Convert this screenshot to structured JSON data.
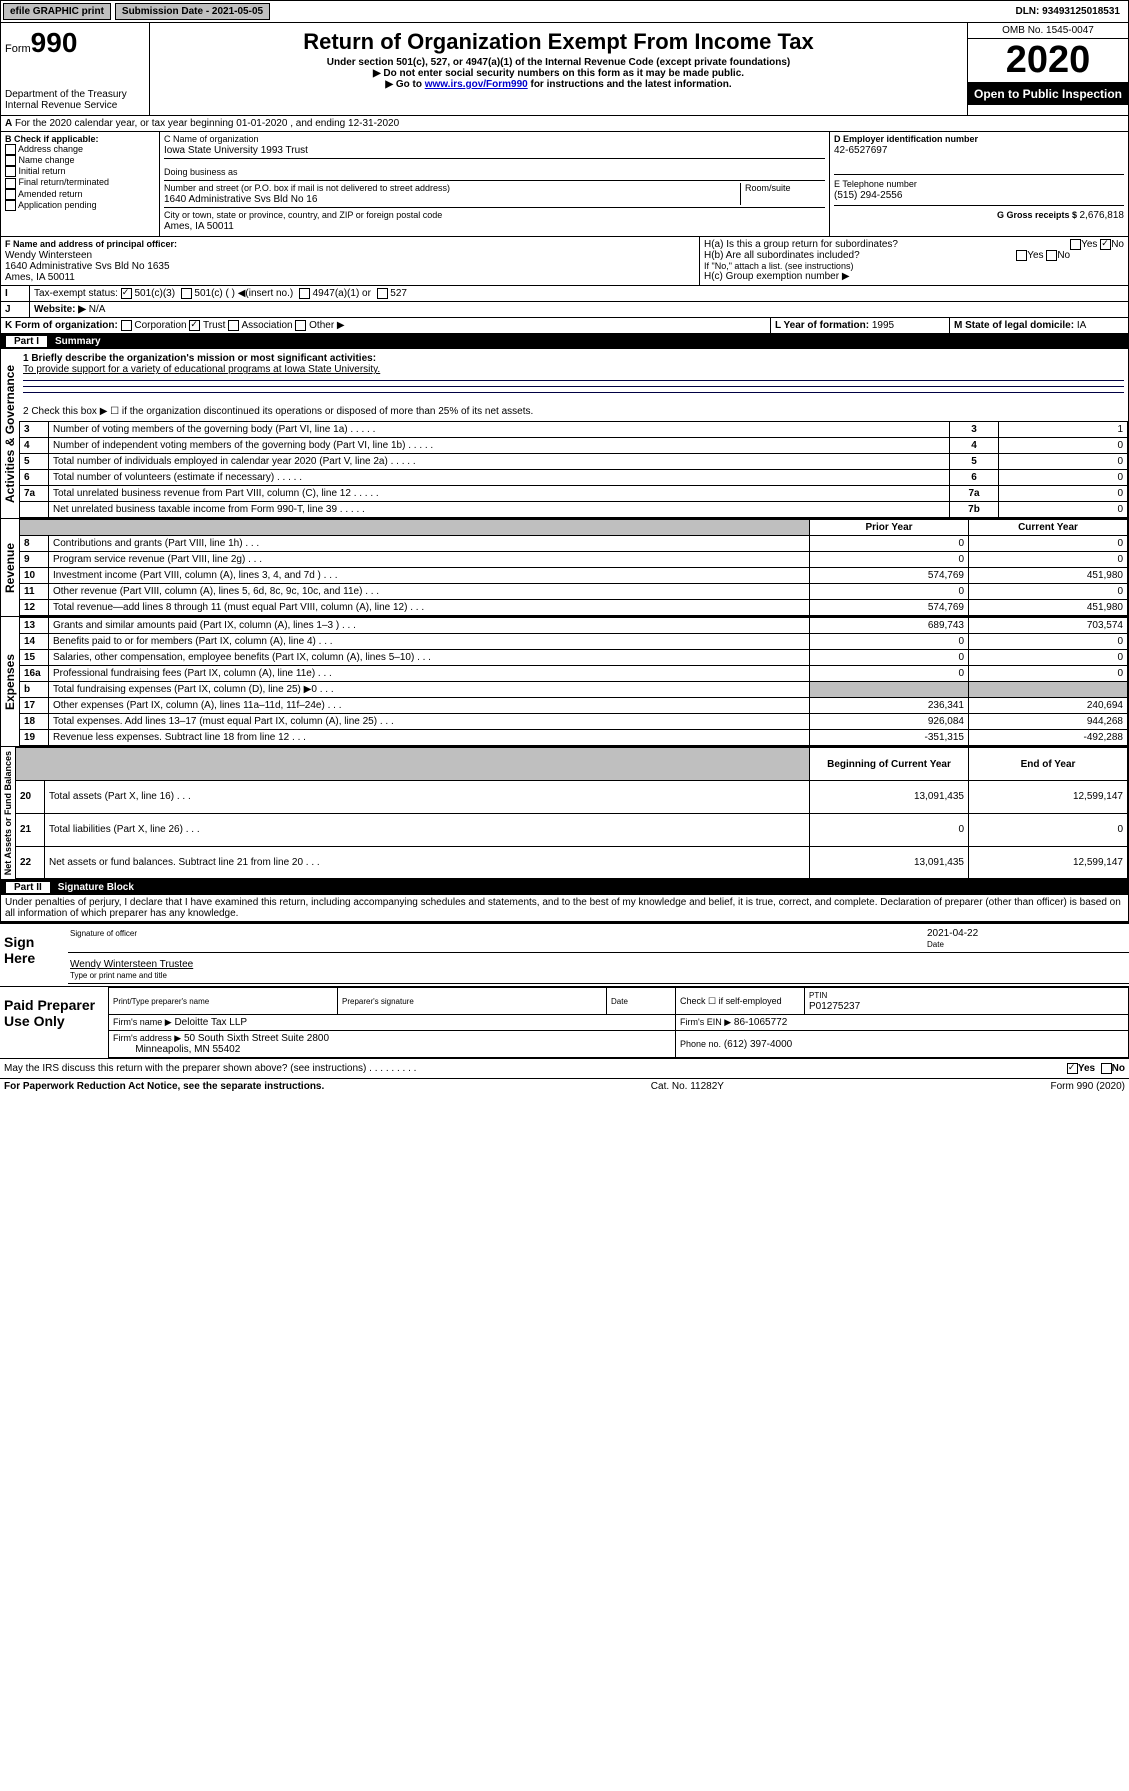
{
  "topbar": {
    "efile": "efile GRAPHIC print",
    "subdate_label": "Submission Date - 2021-05-05",
    "dln": "DLN: 93493125018531"
  },
  "header": {
    "form_label": "Form",
    "form_no": "990",
    "dept": "Department of the Treasury\nInternal Revenue Service",
    "title": "Return of Organization Exempt From Income Tax",
    "subtitle": "Under section 501(c), 527, or 4947(a)(1) of the Internal Revenue Code (except private foundations)",
    "note1": "▶ Do not enter social security numbers on this form as it may be made public.",
    "note2_pre": "▶ Go to ",
    "note2_link": "www.irs.gov/Form990",
    "note2_post": " for instructions and the latest information.",
    "omb": "OMB No. 1545-0047",
    "year": "2020",
    "open": "Open to Public Inspection"
  },
  "line_a": "For the 2020 calendar year, or tax year beginning 01-01-2020    , and ending 12-31-2020",
  "section_b": {
    "label": "B Check if applicable:",
    "items": [
      "Address change",
      "Name change",
      "Initial return",
      "Final return/terminated",
      "Amended return",
      "Application pending"
    ]
  },
  "section_c": {
    "name_label": "C Name of organization",
    "name": "Iowa State University 1993 Trust",
    "dba_label": "Doing business as",
    "addr_label": "Number and street (or P.O. box if mail is not delivered to street address)",
    "addr": "1640 Administrative Svs Bld No 16",
    "room_label": "Room/suite",
    "city_label": "City or town, state or province, country, and ZIP or foreign postal code",
    "city": "Ames, IA  50011"
  },
  "section_d": {
    "ein_label": "D Employer identification number",
    "ein": "42-6527697",
    "phone_label": "E Telephone number",
    "phone": "(515) 294-2556",
    "gross_label": "G Gross receipts $ ",
    "gross": "2,676,818"
  },
  "section_f": {
    "label": "F Name and address of principal officer:",
    "name": "Wendy Wintersteen",
    "addr1": "1640 Administrative Svs Bld No 1635",
    "addr2": "Ames, IA  50011"
  },
  "section_h": {
    "a": "H(a)  Is this a group return for subordinates?",
    "b": "H(b)  Are all subordinates included?",
    "b_note": "If \"No,\" attach a list. (see instructions)",
    "c": "H(c)  Group exemption number ▶"
  },
  "status": {
    "label": "Tax-exempt status:",
    "opt1": "501(c)(3)",
    "opt2": "501(c) (   ) ◀(insert no.)",
    "opt3": "4947(a)(1) or",
    "opt4": "527"
  },
  "website": {
    "label": "Website: ▶",
    "val": "N/A"
  },
  "line_k": "K Form of organization:",
  "k_opts": [
    "Corporation",
    "Trust",
    "Association",
    "Other ▶"
  ],
  "line_l": {
    "label": "L Year of formation: ",
    "val": "1995"
  },
  "line_m": {
    "label": "M State of legal domicile: ",
    "val": "IA"
  },
  "part1": {
    "title": "Part I",
    "name": "Summary",
    "q1": "1  Briefly describe the organization's mission or most significant activities:",
    "q1_ans": "To provide support for a variety of educational programs at Iowa State University.",
    "q2": "2  Check this box ▶ ☐  if the organization discontinued its operations or disposed of more than 25% of its net assets.",
    "rows_gov": [
      {
        "n": "3",
        "t": "Number of voting members of the governing body (Part VI, line 1a)",
        "box": "3",
        "v": "1"
      },
      {
        "n": "4",
        "t": "Number of independent voting members of the governing body (Part VI, line 1b)",
        "box": "4",
        "v": "0"
      },
      {
        "n": "5",
        "t": "Total number of individuals employed in calendar year 2020 (Part V, line 2a)",
        "box": "5",
        "v": "0"
      },
      {
        "n": "6",
        "t": "Total number of volunteers (estimate if necessary)",
        "box": "6",
        "v": "0"
      },
      {
        "n": "7a",
        "t": "Total unrelated business revenue from Part VIII, column (C), line 12",
        "box": "7a",
        "v": "0"
      },
      {
        "n": "",
        "t": "Net unrelated business taxable income from Form 990-T, line 39",
        "box": "7b",
        "v": "0"
      }
    ],
    "col_prior": "Prior Year",
    "col_current": "Current Year",
    "rows_rev": [
      {
        "n": "8",
        "t": "Contributions and grants (Part VIII, line 1h)",
        "p": "0",
        "c": "0"
      },
      {
        "n": "9",
        "t": "Program service revenue (Part VIII, line 2g)",
        "p": "0",
        "c": "0"
      },
      {
        "n": "10",
        "t": "Investment income (Part VIII, column (A), lines 3, 4, and 7d )",
        "p": "574,769",
        "c": "451,980"
      },
      {
        "n": "11",
        "t": "Other revenue (Part VIII, column (A), lines 5, 6d, 8c, 9c, 10c, and 11e)",
        "p": "0",
        "c": "0"
      },
      {
        "n": "12",
        "t": "Total revenue—add lines 8 through 11 (must equal Part VIII, column (A), line 12)",
        "p": "574,769",
        "c": "451,980"
      }
    ],
    "rows_exp": [
      {
        "n": "13",
        "t": "Grants and similar amounts paid (Part IX, column (A), lines 1–3 )",
        "p": "689,743",
        "c": "703,574"
      },
      {
        "n": "14",
        "t": "Benefits paid to or for members (Part IX, column (A), line 4)",
        "p": "0",
        "c": "0"
      },
      {
        "n": "15",
        "t": "Salaries, other compensation, employee benefits (Part IX, column (A), lines 5–10)",
        "p": "0",
        "c": "0"
      },
      {
        "n": "16a",
        "t": "Professional fundraising fees (Part IX, column (A), line 11e)",
        "p": "0",
        "c": "0"
      },
      {
        "n": "b",
        "t": "Total fundraising expenses (Part IX, column (D), line 25) ▶0",
        "p": "",
        "c": "",
        "shade": true
      },
      {
        "n": "17",
        "t": "Other expenses (Part IX, column (A), lines 11a–11d, 11f–24e)",
        "p": "236,341",
        "c": "240,694"
      },
      {
        "n": "18",
        "t": "Total expenses. Add lines 13–17 (must equal Part IX, column (A), line 25)",
        "p": "926,084",
        "c": "944,268"
      },
      {
        "n": "19",
        "t": "Revenue less expenses. Subtract line 18 from line 12",
        "p": "-351,315",
        "c": "-492,288"
      }
    ],
    "col_begin": "Beginning of Current Year",
    "col_end": "End of Year",
    "rows_net": [
      {
        "n": "20",
        "t": "Total assets (Part X, line 16)",
        "p": "13,091,435",
        "c": "12,599,147"
      },
      {
        "n": "21",
        "t": "Total liabilities (Part X, line 26)",
        "p": "0",
        "c": "0"
      },
      {
        "n": "22",
        "t": "Net assets or fund balances. Subtract line 21 from line 20",
        "p": "13,091,435",
        "c": "12,599,147"
      }
    ]
  },
  "part2": {
    "title": "Part II",
    "name": "Signature Block",
    "decl": "Under penalties of perjury, I declare that I have examined this return, including accompanying schedules and statements, and to the best of my knowledge and belief, it is true, correct, and complete. Declaration of preparer (other than officer) is based on all information of which preparer has any knowledge.",
    "sign_here": "Sign Here",
    "sig_officer": "Signature of officer",
    "sig_date": "2021-04-22",
    "date_label": "Date",
    "officer_name": "Wendy Wintersteen  Trustee",
    "type_name": "Type or print name and title",
    "paid": "Paid Preparer Use Only",
    "prep_name_label": "Print/Type preparer's name",
    "prep_sig_label": "Preparer's signature",
    "prep_date_label": "Date",
    "check_self": "Check ☐ if self-employed",
    "ptin_label": "PTIN",
    "ptin": "P01275237",
    "firm_name_label": "Firm's name    ▶",
    "firm_name": "Deloitte Tax LLP",
    "firm_ein_label": "Firm's EIN ▶",
    "firm_ein": "86-1065772",
    "firm_addr_label": "Firm's address ▶",
    "firm_addr1": "50 South Sixth Street Suite 2800",
    "firm_addr2": "Minneapolis, MN  55402",
    "phone_label": "Phone no.",
    "phone": "(612) 397-4000",
    "discuss": "May the IRS discuss this return with the preparer shown above? (see instructions)",
    "yes": "Yes",
    "no": "No"
  },
  "footer": {
    "pra": "For Paperwork Reduction Act Notice, see the separate instructions.",
    "cat": "Cat. No. 11282Y",
    "form": "Form 990 (2020)"
  },
  "vert_labels": {
    "gov": "Activities & Governance",
    "rev": "Revenue",
    "exp": "Expenses",
    "net": "Net Assets or Fund Balances"
  }
}
